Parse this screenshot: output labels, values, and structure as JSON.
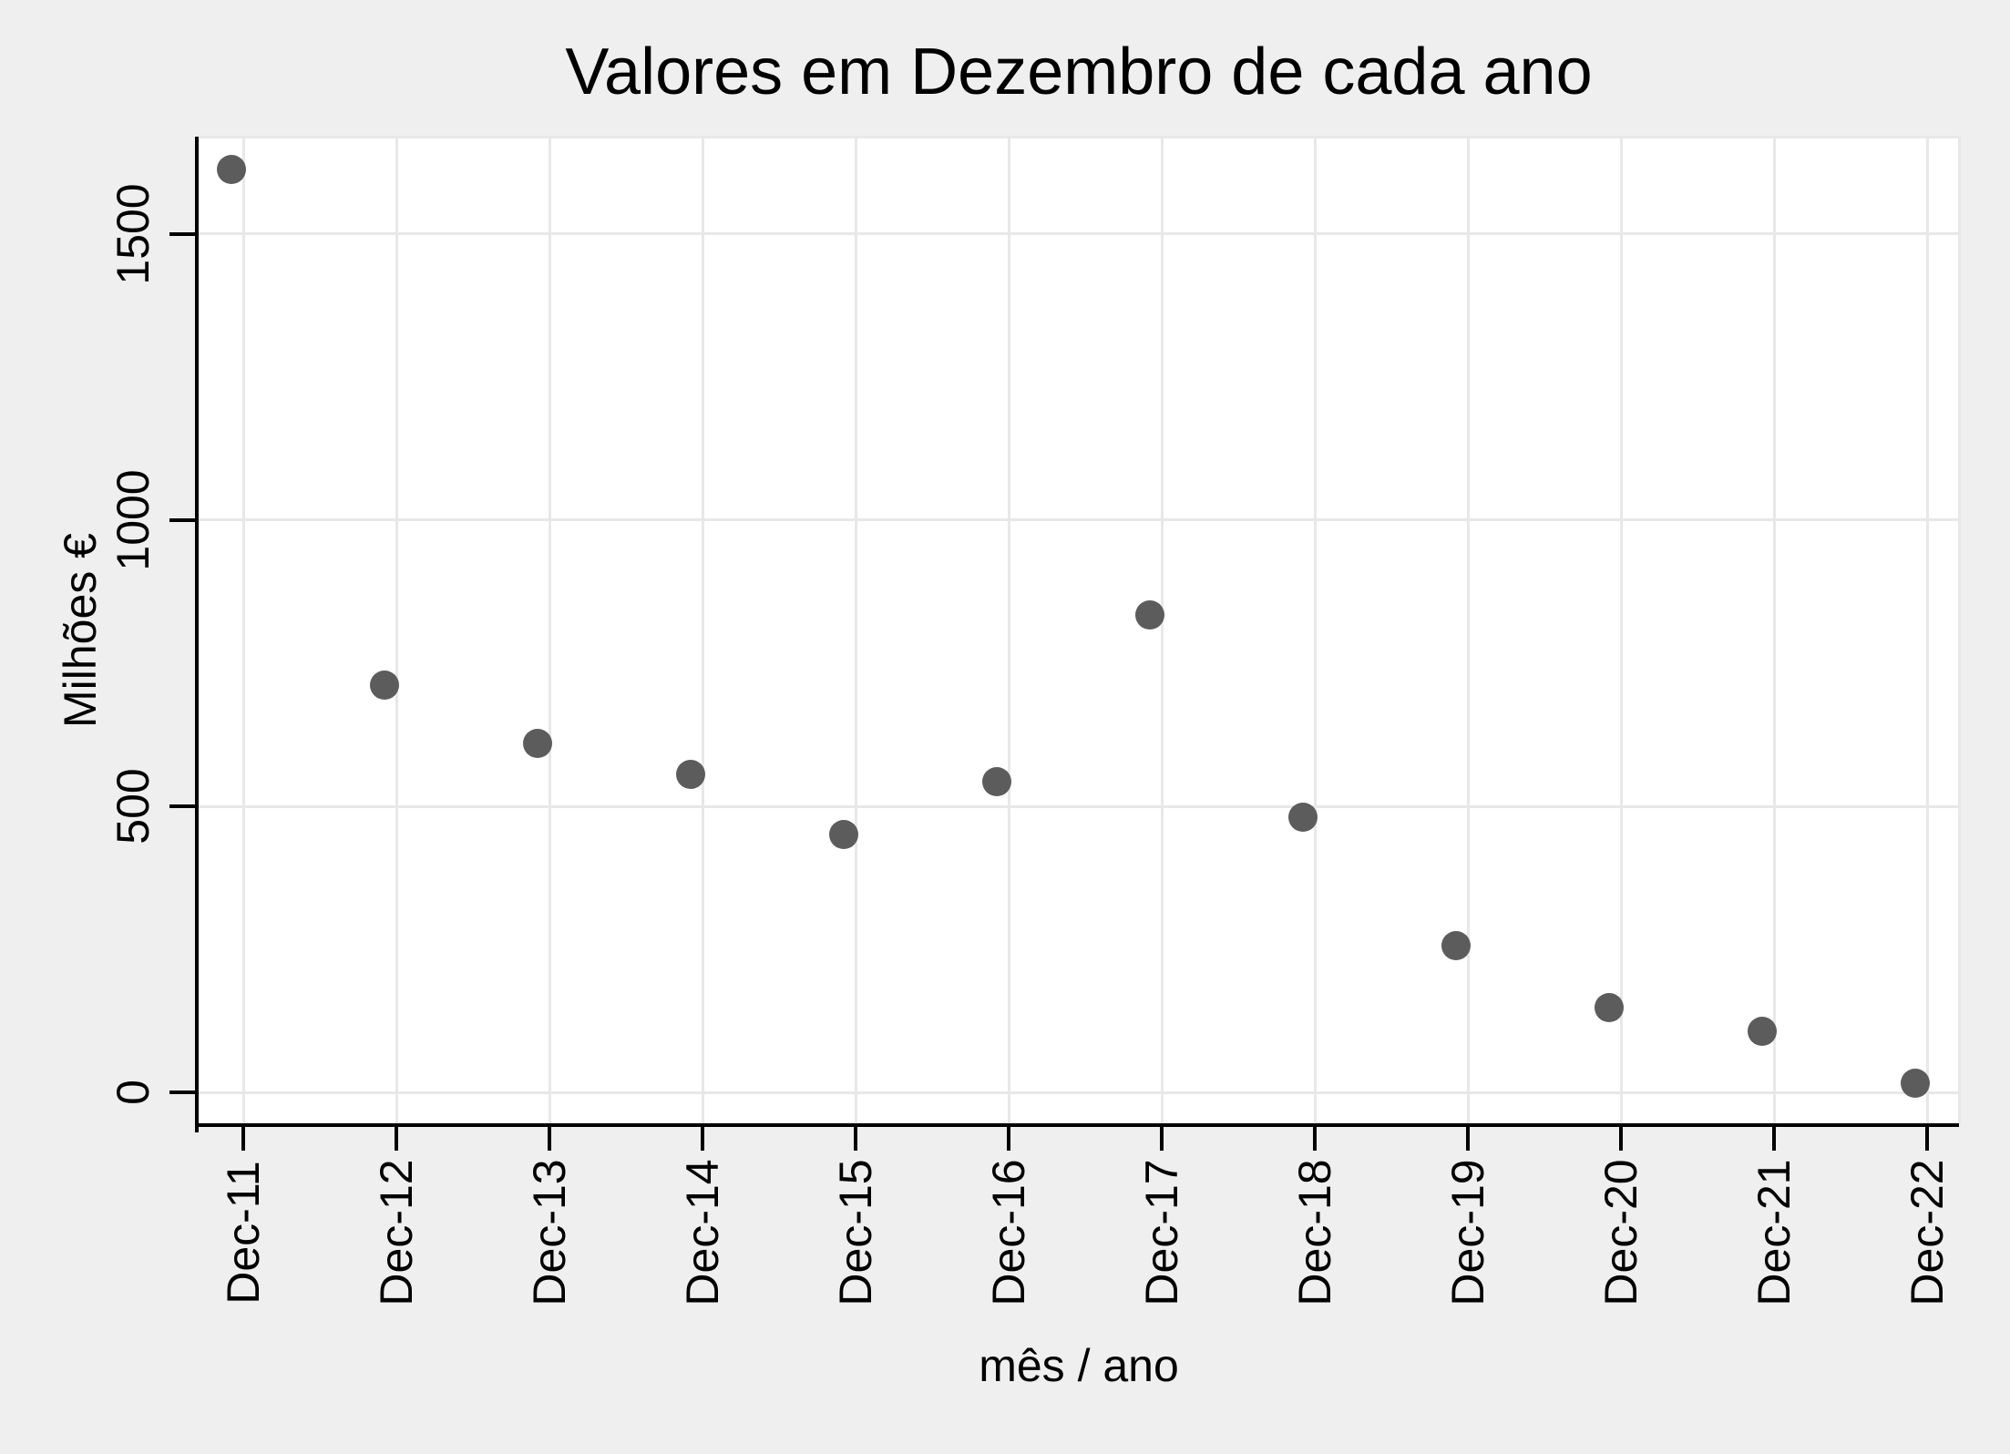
{
  "chart_data": {
    "type": "scatter",
    "title": "Valores em Dezembro de cada ano",
    "xlabel": "mês / ano",
    "ylabel": "Milhões €",
    "categories": [
      "Dec-11",
      "Dec-12",
      "Dec-13",
      "Dec-14",
      "Dec-15",
      "Dec-16",
      "Dec-17",
      "Dec-18",
      "Dec-19",
      "Dec-20",
      "Dec-21",
      "Dec-22"
    ],
    "values": [
      1613,
      712,
      610,
      556,
      451,
      543,
      834,
      481,
      256,
      148,
      107,
      16
    ],
    "yticks": [
      0,
      500,
      1000,
      1500
    ],
    "ylim": [
      -57,
      1670
    ],
    "grid": true,
    "legend": "none",
    "tick_label_rotation": -90,
    "colors": {
      "marker": "#5c5c5c",
      "plot_bg": "#ffffff",
      "outer_bg": "#efefef",
      "gridline": "#e8e8e8",
      "axis": "#000000",
      "text": "#000000"
    }
  }
}
